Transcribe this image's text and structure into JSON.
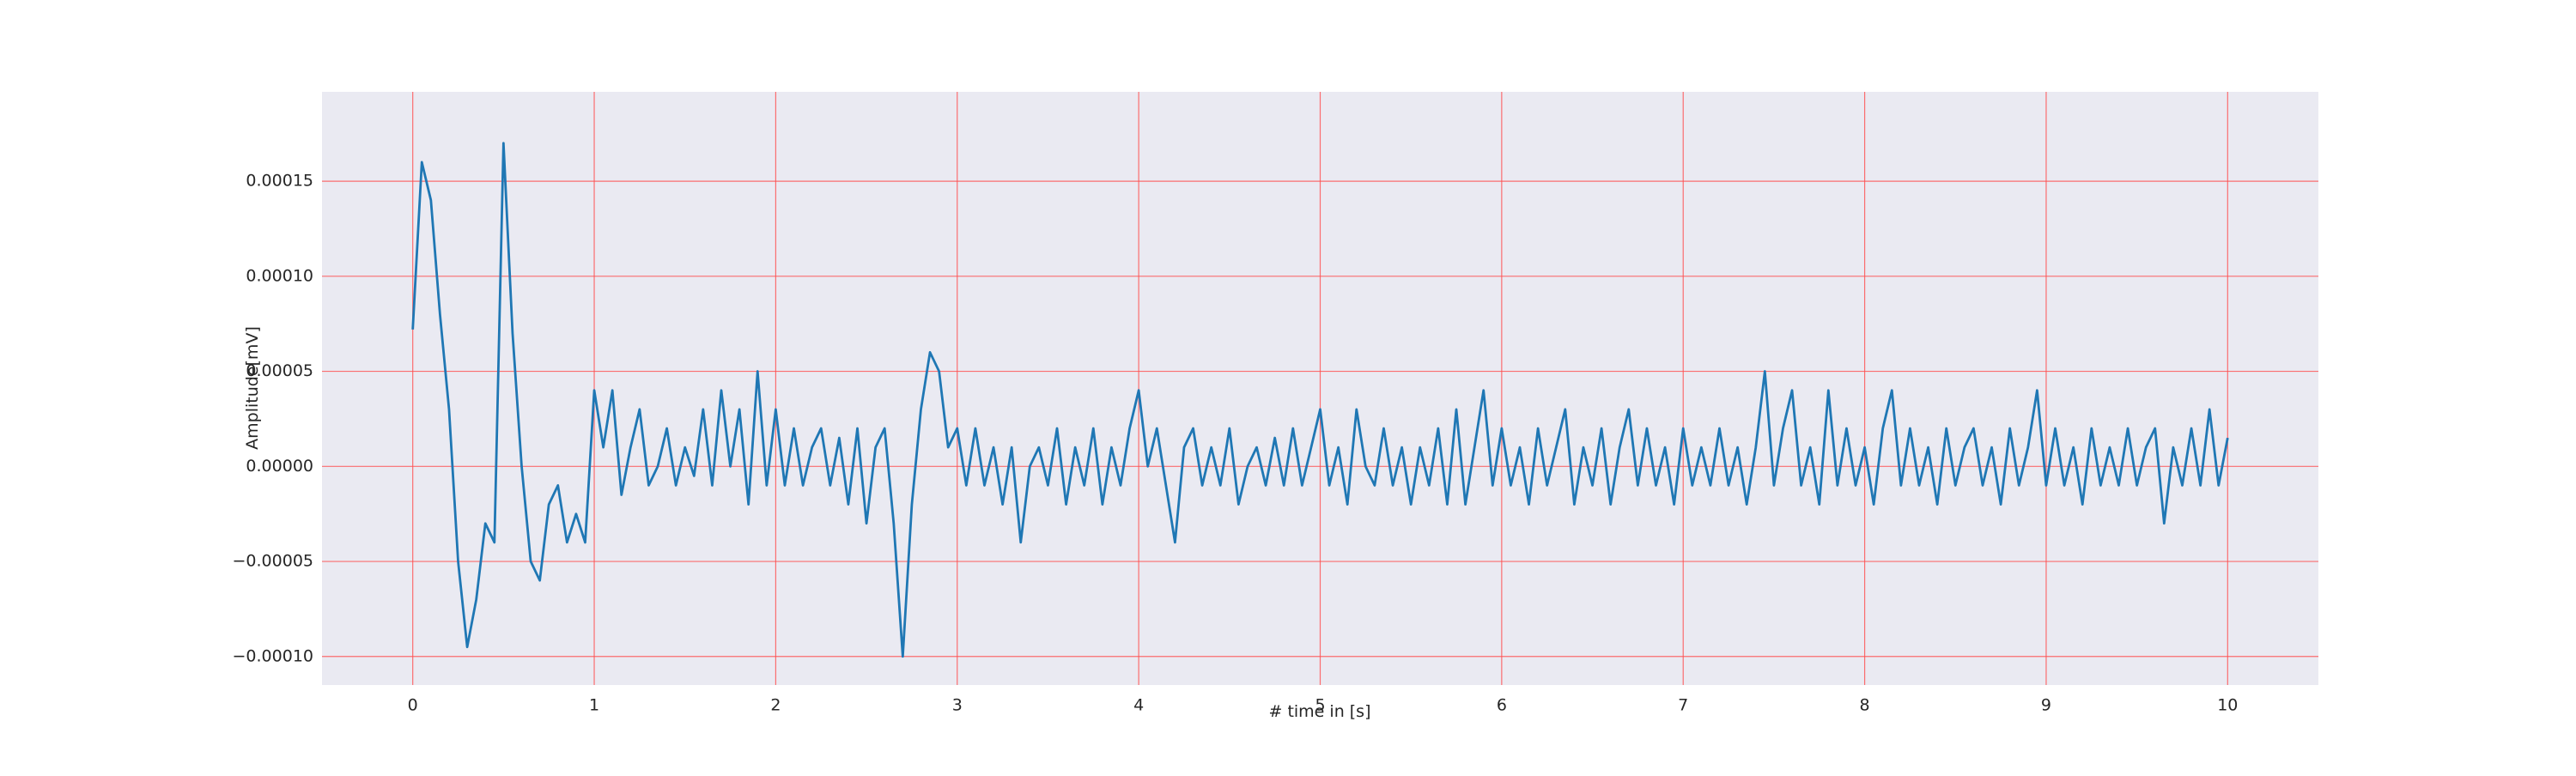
{
  "chart_data": {
    "type": "line",
    "xlabel": "# time in [s]",
    "ylabel": "Amplitude[mV]",
    "xlim": [
      -0.5,
      10.5
    ],
    "ylim": [
      -0.000115,
      0.000197
    ],
    "xticks": [
      0,
      1,
      2,
      3,
      4,
      5,
      6,
      7,
      8,
      9,
      10
    ],
    "yticks": [
      {
        "value": -0.0001,
        "label": "−0.00010"
      },
      {
        "value": -5e-05,
        "label": "−0.00005"
      },
      {
        "value": 0,
        "label": "0.00000"
      },
      5e-05,
      {
        "value": 0.0001,
        "label": "0.00010"
      },
      0.00015
    ],
    "grid": true,
    "grid_color": "#ff4d4d",
    "background": "#eaeaf2",
    "series": [
      {
        "color": "#1f77b4",
        "x": [
          0,
          0.05,
          0.1,
          0.15,
          0.2,
          0.25,
          0.3,
          0.35,
          0.4,
          0.45,
          0.5,
          0.55,
          0.6,
          0.65,
          0.7,
          0.75,
          0.8,
          0.85,
          0.9,
          0.95,
          1,
          1.05,
          1.1,
          1.15,
          1.2,
          1.25,
          1.3,
          1.35,
          1.4,
          1.45,
          1.5,
          1.55,
          1.6,
          1.65,
          1.7,
          1.75,
          1.8,
          1.85,
          1.9,
          1.95,
          2,
          2.05,
          2.1,
          2.15,
          2.2,
          2.25,
          2.3,
          2.35,
          2.4,
          2.45,
          2.5,
          2.55,
          2.6,
          2.65,
          2.7,
          2.75,
          2.8,
          2.85,
          2.9,
          2.95,
          3,
          3.05,
          3.1,
          3.15,
          3.2,
          3.25,
          3.3,
          3.35,
          3.4,
          3.45,
          3.5,
          3.55,
          3.6,
          3.65,
          3.7,
          3.75,
          3.8,
          3.85,
          3.9,
          3.95,
          4,
          4.05,
          4.1,
          4.15,
          4.2,
          4.25,
          4.3,
          4.35,
          4.4,
          4.45,
          4.5,
          4.55,
          4.6,
          4.65,
          4.7,
          4.75,
          4.8,
          4.85,
          4.9,
          4.95,
          5,
          5.05,
          5.1,
          5.15,
          5.2,
          5.25,
          5.3,
          5.35,
          5.4,
          5.45,
          5.5,
          5.55,
          5.6,
          5.65,
          5.7,
          5.75,
          5.8,
          5.85,
          5.9,
          5.95,
          6,
          6.05,
          6.1,
          6.15,
          6.2,
          6.25,
          6.3,
          6.35,
          6.4,
          6.45,
          6.5,
          6.55,
          6.6,
          6.65,
          6.7,
          6.75,
          6.8,
          6.85,
          6.9,
          6.95,
          7,
          7.05,
          7.1,
          7.15,
          7.2,
          7.25,
          7.3,
          7.35,
          7.4,
          7.45,
          7.5,
          7.55,
          7.6,
          7.65,
          7.7,
          7.75,
          7.8,
          7.85,
          7.9,
          7.95,
          8,
          8.05,
          8.1,
          8.15,
          8.2,
          8.25,
          8.3,
          8.35,
          8.4,
          8.45,
          8.5,
          8.55,
          8.6,
          8.65,
          8.7,
          8.75,
          8.8,
          8.85,
          8.9,
          8.95,
          9,
          9.05,
          9.1,
          9.15,
          9.2,
          9.25,
          9.3,
          9.35,
          9.4,
          9.45,
          9.5,
          9.55,
          9.6,
          9.65,
          9.7,
          9.75,
          9.8,
          9.85,
          9.9,
          9.95,
          10
        ],
        "values": [
          7.2e-05,
          0.00016,
          0.00014,
          8e-05,
          3e-05,
          -5e-05,
          -9.5e-05,
          -7e-05,
          -3e-05,
          -4e-05,
          0.00017,
          7e-05,
          0,
          -5e-05,
          -6e-05,
          -2e-05,
          -1e-05,
          -4e-05,
          -2.5e-05,
          -4e-05,
          4e-05,
          1e-05,
          4e-05,
          -1.5e-05,
          1e-05,
          3e-05,
          -1e-05,
          0,
          2e-05,
          -1e-05,
          1e-05,
          -5e-06,
          3e-05,
          -1e-05,
          4e-05,
          0,
          3e-05,
          -2e-05,
          5e-05,
          -1e-05,
          3e-05,
          -1e-05,
          2e-05,
          -1e-05,
          1e-05,
          2e-05,
          -1e-05,
          1.5e-05,
          -2e-05,
          2e-05,
          -3e-05,
          1e-05,
          2e-05,
          -3e-05,
          -0.0001,
          -2e-05,
          3e-05,
          6e-05,
          5e-05,
          1e-05,
          2e-05,
          -1e-05,
          2e-05,
          -1e-05,
          1e-05,
          -2e-05,
          1e-05,
          -4e-05,
          0,
          1e-05,
          -1e-05,
          2e-05,
          -2e-05,
          1e-05,
          -1e-05,
          2e-05,
          -2e-05,
          1e-05,
          -1e-05,
          2e-05,
          4e-05,
          0,
          2e-05,
          -1e-05,
          -4e-05,
          1e-05,
          2e-05,
          -1e-05,
          1e-05,
          -1e-05,
          2e-05,
          -2e-05,
          0,
          1e-05,
          -1e-05,
          1.5e-05,
          -1e-05,
          2e-05,
          -1e-05,
          1e-05,
          3e-05,
          -1e-05,
          1e-05,
          -2e-05,
          3e-05,
          0,
          -1e-05,
          2e-05,
          -1e-05,
          1e-05,
          -2e-05,
          1e-05,
          -1e-05,
          2e-05,
          -2e-05,
          3e-05,
          -2e-05,
          1e-05,
          4e-05,
          -1e-05,
          2e-05,
          -1e-05,
          1e-05,
          -2e-05,
          2e-05,
          -1e-05,
          1e-05,
          3e-05,
          -2e-05,
          1e-05,
          -1e-05,
          2e-05,
          -2e-05,
          1e-05,
          3e-05,
          -1e-05,
          2e-05,
          -1e-05,
          1e-05,
          -2e-05,
          2e-05,
          -1e-05,
          1e-05,
          -1e-05,
          2e-05,
          -1e-05,
          1e-05,
          -2e-05,
          1e-05,
          5e-05,
          -1e-05,
          2e-05,
          4e-05,
          -1e-05,
          1e-05,
          -2e-05,
          4e-05,
          -1e-05,
          2e-05,
          -1e-05,
          1e-05,
          -2e-05,
          2e-05,
          4e-05,
          -1e-05,
          2e-05,
          -1e-05,
          1e-05,
          -2e-05,
          2e-05,
          -1e-05,
          1e-05,
          2e-05,
          -1e-05,
          1e-05,
          -2e-05,
          2e-05,
          -1e-05,
          1e-05,
          4e-05,
          -1e-05,
          2e-05,
          -1e-05,
          1e-05,
          -2e-05,
          2e-05,
          -1e-05,
          1e-05,
          -1e-05,
          2e-05,
          -1e-05,
          1e-05,
          2e-05,
          -3e-05,
          1e-05,
          -1e-05,
          2e-05,
          -1e-05,
          3e-05,
          -1e-05,
          1.5e-05
        ]
      }
    ]
  }
}
